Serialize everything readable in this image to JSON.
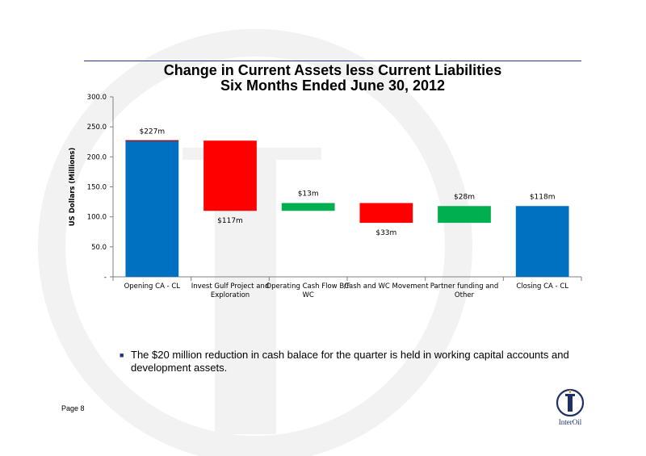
{
  "title": {
    "line1": "Change in Current Assets less Current Liabilities",
    "line2": "Six Months Ended June 30, 2012"
  },
  "bullet": {
    "text": "The $20 million reduction in cash balace for the quarter is held in working capital accounts and development assets."
  },
  "footer": {
    "page": "Page 8",
    "logo_text": "InterOil"
  },
  "colors": {
    "total": "#0070c0",
    "decrease": "#ff0000",
    "increase": "#00b050",
    "title_rule": "#2d3a8c",
    "watermark": "#f2f2f2"
  },
  "chart_data": {
    "type": "bar",
    "subtype": "waterfall",
    "title": "Change in Current Assets less Current Liabilities Six Months Ended June 30, 2012",
    "xlabel": "",
    "ylabel": "US Dollars (Millions)",
    "ylim": [
      0,
      300
    ],
    "yticks": [
      "-",
      "50.0",
      "100.0",
      "150.0",
      "200.0",
      "250.0",
      "300.0"
    ],
    "grid": false,
    "legend": "none",
    "categories": [
      [
        "Opening CA - CL"
      ],
      [
        "Invest Gulf Project and",
        "Exploration"
      ],
      [
        "Operating Cash Flow B/F",
        "WC"
      ],
      [
        "Cash and WC Movement"
      ],
      [
        "Partner funding and",
        "Other"
      ],
      [
        "Closing CA - CL"
      ]
    ],
    "bars": [
      {
        "kind": "total",
        "start": 0,
        "end": 227,
        "label": "$227m",
        "label_pos": "above"
      },
      {
        "kind": "decrease",
        "start": 227,
        "end": 110,
        "label": "$117m",
        "label_pos": "below"
      },
      {
        "kind": "increase",
        "start": 110,
        "end": 123,
        "label": "$13m",
        "label_pos": "above"
      },
      {
        "kind": "decrease",
        "start": 123,
        "end": 90,
        "label": "$33m",
        "label_pos": "below"
      },
      {
        "kind": "increase",
        "start": 90,
        "end": 118,
        "label": "$28m",
        "label_pos": "above"
      },
      {
        "kind": "total",
        "start": 0,
        "end": 118,
        "label": "$118m",
        "label_pos": "above"
      }
    ]
  }
}
